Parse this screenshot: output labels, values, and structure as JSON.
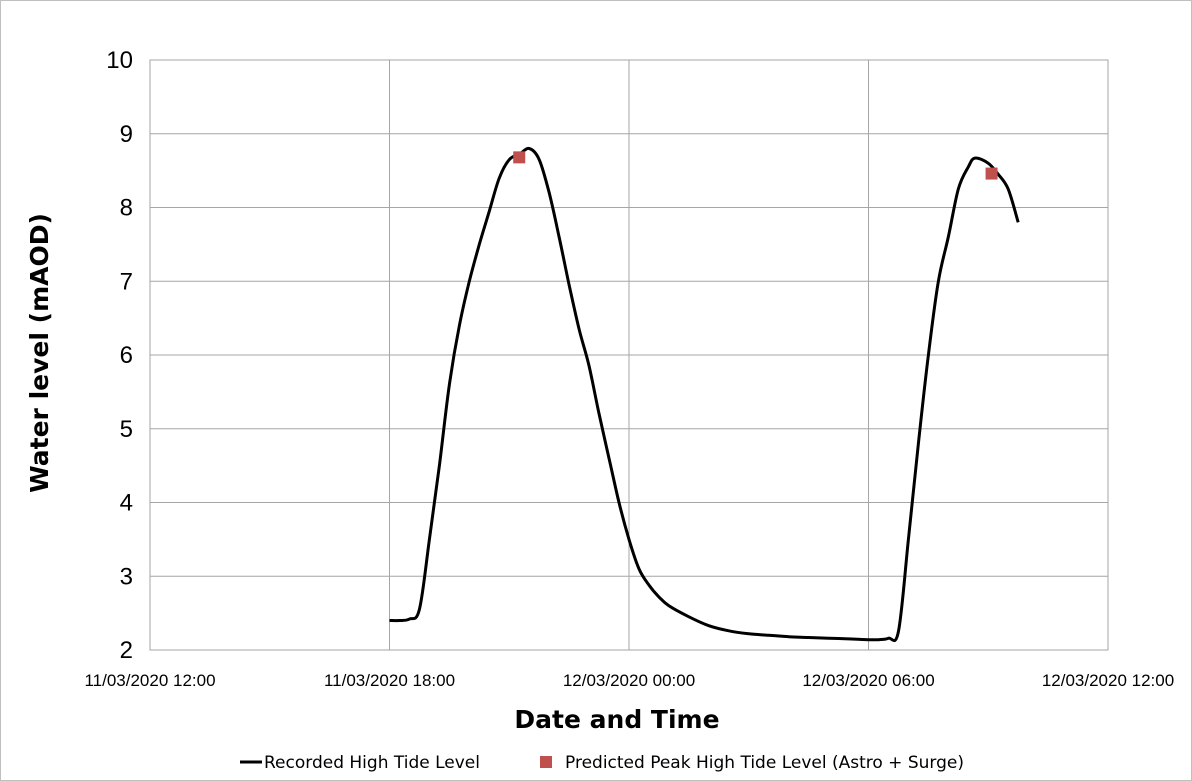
{
  "chart_data": {
    "type": "line",
    "title": "",
    "xlabel": "Date and Time",
    "ylabel": "Water level (mAOD)",
    "ylim": [
      2,
      10
    ],
    "yticks": [
      "2",
      "3",
      "4",
      "5",
      "6",
      "7",
      "8",
      "9",
      "10"
    ],
    "xlim": [
      "11/03/2020 12:00",
      "12/03/2020 12:00"
    ],
    "xticks": [
      "11/03/2020 12:00",
      "11/03/2020 18:00",
      "12/03/2020 00:00",
      "12/03/2020 06:00",
      "12/03/2020 12:00"
    ],
    "grid": true,
    "legend_position": "bottom",
    "series": [
      {
        "name": "Recorded High Tide Level",
        "kind": "line",
        "color": "#000000",
        "points": [
          [
            "11/03/2020 18:00",
            2.4
          ],
          [
            "11/03/2020 18:15",
            2.4
          ],
          [
            "11/03/2020 18:30",
            2.42
          ],
          [
            "11/03/2020 18:45",
            2.55
          ],
          [
            "11/03/2020 19:00",
            3.5
          ],
          [
            "11/03/2020 19:15",
            4.5
          ],
          [
            "11/03/2020 19:30",
            5.6
          ],
          [
            "11/03/2020 19:45",
            6.4
          ],
          [
            "11/03/2020 20:00",
            7.0
          ],
          [
            "11/03/2020 20:15",
            7.5
          ],
          [
            "11/03/2020 20:30",
            7.95
          ],
          [
            "11/03/2020 20:45",
            8.4
          ],
          [
            "11/03/2020 21:00",
            8.65
          ],
          [
            "11/03/2020 21:15",
            8.72
          ],
          [
            "11/03/2020 21:30",
            8.8
          ],
          [
            "11/03/2020 21:45",
            8.65
          ],
          [
            "11/03/2020 22:00",
            8.2
          ],
          [
            "11/03/2020 22:15",
            7.6
          ],
          [
            "11/03/2020 22:30",
            6.95
          ],
          [
            "11/03/2020 22:45",
            6.35
          ],
          [
            "11/03/2020 23:00",
            5.85
          ],
          [
            "11/03/2020 23:15",
            5.2
          ],
          [
            "11/03/2020 23:30",
            4.6
          ],
          [
            "11/03/2020 23:45",
            4.0
          ],
          [
            "12/03/2020 00:00",
            3.5
          ],
          [
            "12/03/2020 00:15",
            3.1
          ],
          [
            "12/03/2020 00:30",
            2.88
          ],
          [
            "12/03/2020 00:45",
            2.72
          ],
          [
            "12/03/2020 01:00",
            2.6
          ],
          [
            "12/03/2020 01:30",
            2.45
          ],
          [
            "12/03/2020 02:00",
            2.33
          ],
          [
            "12/03/2020 02:30",
            2.26
          ],
          [
            "12/03/2020 03:00",
            2.22
          ],
          [
            "12/03/2020 03:30",
            2.2
          ],
          [
            "12/03/2020 04:00",
            2.18
          ],
          [
            "12/03/2020 04:30",
            2.17
          ],
          [
            "12/03/2020 05:00",
            2.16
          ],
          [
            "12/03/2020 05:30",
            2.15
          ],
          [
            "12/03/2020 06:00",
            2.14
          ],
          [
            "12/03/2020 06:15",
            2.14
          ],
          [
            "12/03/2020 06:30",
            2.16
          ],
          [
            "12/03/2020 06:45",
            2.25
          ],
          [
            "12/03/2020 07:00",
            3.5
          ],
          [
            "12/03/2020 07:15",
            4.8
          ],
          [
            "12/03/2020 07:30",
            6.0
          ],
          [
            "12/03/2020 07:45",
            7.0
          ],
          [
            "12/03/2020 08:00",
            7.6
          ],
          [
            "12/03/2020 08:15",
            8.25
          ],
          [
            "12/03/2020 08:30",
            8.55
          ],
          [
            "12/03/2020 08:40",
            8.67
          ],
          [
            "12/03/2020 09:00",
            8.6
          ],
          [
            "12/03/2020 09:15",
            8.45
          ],
          [
            "12/03/2020 09:30",
            8.25
          ],
          [
            "12/03/2020 09:45",
            7.8
          ]
        ]
      },
      {
        "name": "Predicted Peak High Tide Level (Astro + Surge)",
        "kind": "marker",
        "color": "#c0504d",
        "points": [
          [
            "11/03/2020 21:15",
            8.68
          ],
          [
            "12/03/2020 09:05",
            8.46
          ]
        ]
      }
    ]
  }
}
